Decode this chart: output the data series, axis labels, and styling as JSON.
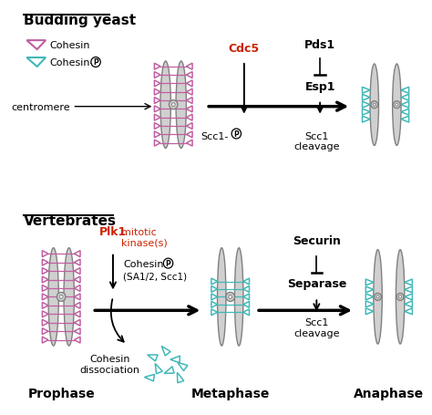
{
  "bg_color": "#ffffff",
  "cohesin_color": "#c060a0",
  "cohesinP_color": "#40b8b8",
  "chromatid_fill": "#d0d0d0",
  "chromatid_edge": "#808080",
  "red_text": "#cc2200",
  "black": "#000000",
  "section1_title": "Budding yeast",
  "section2_title": "Vertebrates",
  "legend_cohesin": "Cohesin",
  "legend_cohP": "Cohesin-",
  "centromere_label": "centromere",
  "cdc5_label": "Cdc5",
  "pds1_label": "Pds1",
  "esp1_label": "Esp1",
  "scc1p_label": "Scc1-",
  "scc1_cleavage_label": "Scc1\ncleavage",
  "plk1_label": "Plk1",
  "mitotic_label": "mitotic\nkinase(s)",
  "cohP_label": "Cohesin-",
  "sa12_label": "(SA1/2, Scc1)",
  "dissociation_label": "Cohesin\ndissociation",
  "securin_label": "Securin",
  "separase_label": "Separase",
  "scc1_cleavage2_label": "Scc1\ncleavage",
  "prophase_label": "Prophase",
  "metaphase_label": "Metaphase",
  "anaphase_label": "Anaphase"
}
